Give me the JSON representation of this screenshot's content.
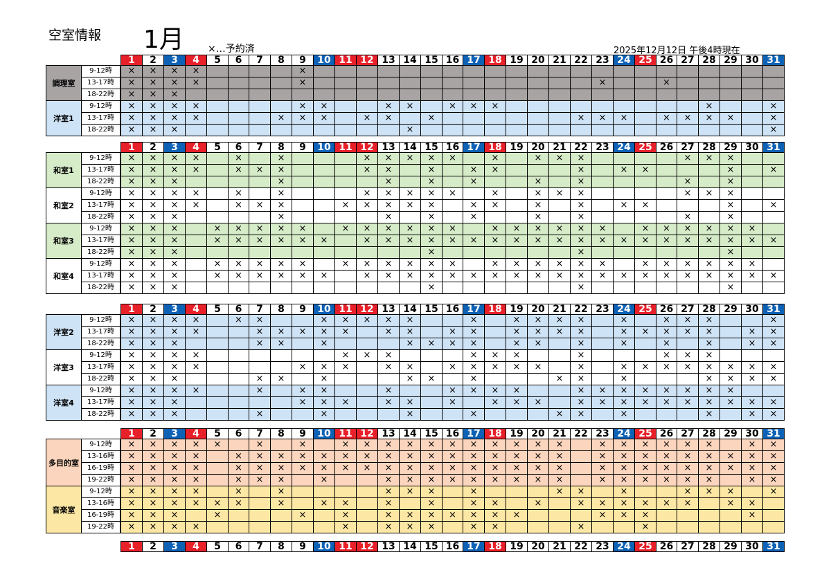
{
  "header": {
    "title": "空室情報",
    "month": "1月",
    "legend": "×…予約済",
    "as_of": "2025年12月12日 午後4時現在"
  },
  "day_labels": [
    "1",
    "2",
    "3",
    "4",
    "5",
    "6",
    "7",
    "8",
    "9",
    "10",
    "11",
    "12",
    "13",
    "14",
    "15",
    "16",
    "17",
    "18",
    "19",
    "20",
    "21",
    "22",
    "23",
    "24",
    "25",
    "26",
    "27",
    "28",
    "29",
    "30",
    "31"
  ],
  "red_days": [
    1,
    4,
    11,
    12,
    18,
    25
  ],
  "blue_days": [
    3,
    10,
    17,
    24,
    31
  ],
  "mark": "×",
  "colors": {
    "gray": "#a8a4a4",
    "blue": "#cfe3f6",
    "green": "#d6ebc8",
    "orange": "#fbd5bd",
    "yellow": "#fde7a4",
    "red": "#e8202a",
    "darkblue": "#0d62b6"
  },
  "sections": [
    {
      "rooms": [
        {
          "name": "調理室",
          "color": "gray",
          "rows": [
            {
              "slot": "9-12時",
              "booked": [
                1,
                2,
                3,
                4,
                9
              ]
            },
            {
              "slot": "13-17時",
              "booked": [
                1,
                2,
                3,
                4,
                9,
                23,
                26
              ]
            },
            {
              "slot": "18-22時",
              "booked": [
                1,
                2,
                3
              ]
            }
          ]
        },
        {
          "name": "洋室1",
          "color": "blue",
          "rows": [
            {
              "slot": "9-12時",
              "booked": [
                1,
                2,
                3,
                4,
                9,
                10,
                13,
                14,
                16,
                17,
                18,
                28,
                31
              ]
            },
            {
              "slot": "13-17時",
              "booked": [
                1,
                2,
                3,
                4,
                8,
                9,
                10,
                12,
                13,
                15,
                22,
                23,
                24,
                26,
                27,
                28,
                29,
                31
              ]
            },
            {
              "slot": "18-22時",
              "booked": [
                1,
                2,
                3,
                14,
                31
              ]
            }
          ]
        }
      ]
    },
    {
      "rooms": [
        {
          "name": "和室1",
          "color": "green",
          "rows": [
            {
              "slot": "9-12時",
              "booked": [
                1,
                2,
                3,
                4,
                6,
                8,
                12,
                13,
                14,
                15,
                16,
                18,
                20,
                21,
                22,
                27,
                28,
                29
              ]
            },
            {
              "slot": "13-17時",
              "booked": [
                1,
                2,
                3,
                4,
                6,
                7,
                8,
                12,
                13,
                15,
                17,
                18,
                22,
                24,
                25,
                29,
                31
              ]
            },
            {
              "slot": "18-22時",
              "booked": [
                1,
                2,
                3,
                8,
                13,
                15,
                17,
                20,
                22,
                27,
                29
              ]
            }
          ]
        },
        {
          "name": "和室2",
          "color": "white",
          "rows": [
            {
              "slot": "9-12時",
              "booked": [
                1,
                2,
                3,
                4,
                6,
                8,
                12,
                13,
                14,
                15,
                16,
                18,
                20,
                21,
                22,
                27,
                28,
                29
              ]
            },
            {
              "slot": "13-17時",
              "booked": [
                1,
                2,
                3,
                4,
                6,
                7,
                8,
                11,
                12,
                13,
                14,
                15,
                17,
                18,
                20,
                22,
                24,
                25,
                29,
                31
              ]
            },
            {
              "slot": "18-22時",
              "booked": [
                1,
                2,
                3,
                8,
                13,
                15,
                17,
                20,
                22,
                27,
                29
              ]
            }
          ]
        },
        {
          "name": "和室3",
          "color": "green",
          "rows": [
            {
              "slot": "9-12時",
              "booked": [
                1,
                2,
                3,
                5,
                6,
                7,
                8,
                9,
                11,
                12,
                13,
                14,
                15,
                16,
                18,
                19,
                20,
                21,
                22,
                23,
                25,
                26,
                27,
                28,
                29,
                30
              ]
            },
            {
              "slot": "13-17時",
              "booked": [
                1,
                2,
                3,
                5,
                6,
                7,
                8,
                9,
                10,
                12,
                13,
                14,
                15,
                16,
                17,
                18,
                19,
                20,
                21,
                22,
                23,
                24,
                25,
                26,
                27,
                28,
                29,
                30,
                31
              ]
            },
            {
              "slot": "18-22時",
              "booked": [
                1,
                2,
                3,
                15,
                22,
                29
              ]
            }
          ]
        },
        {
          "name": "和室4",
          "color": "white",
          "rows": [
            {
              "slot": "9-12時",
              "booked": [
                1,
                2,
                3,
                5,
                6,
                7,
                8,
                9,
                11,
                12,
                13,
                14,
                15,
                16,
                18,
                19,
                20,
                21,
                22,
                23,
                25,
                26,
                27,
                28,
                29,
                30
              ]
            },
            {
              "slot": "13-17時",
              "booked": [
                1,
                2,
                3,
                5,
                6,
                7,
                8,
                9,
                10,
                12,
                13,
                14,
                15,
                16,
                17,
                18,
                19,
                20,
                21,
                22,
                23,
                24,
                25,
                26,
                27,
                28,
                29,
                30,
                31
              ]
            },
            {
              "slot": "18-22時",
              "booked": [
                1,
                2,
                3,
                15,
                22,
                29
              ]
            }
          ]
        }
      ]
    },
    {
      "rooms": [
        {
          "name": "洋室2",
          "color": "blue",
          "rows": [
            {
              "slot": "9-12時",
              "booked": [
                1,
                2,
                3,
                4,
                6,
                7,
                10,
                11,
                12,
                13,
                14,
                17,
                19,
                20,
                21,
                22,
                24,
                26,
                27,
                28,
                31
              ]
            },
            {
              "slot": "13-17時",
              "booked": [
                1,
                2,
                3,
                4,
                7,
                8,
                9,
                10,
                11,
                13,
                14,
                16,
                17,
                19,
                20,
                21,
                22,
                24,
                25,
                26,
                27,
                28,
                30,
                31
              ]
            },
            {
              "slot": "18-22時",
              "booked": [
                1,
                2,
                3,
                7,
                8,
                10,
                14,
                15,
                16,
                17,
                19,
                20,
                22,
                24,
                26,
                28,
                30,
                31
              ]
            }
          ]
        },
        {
          "name": "洋室3",
          "color": "white",
          "rows": [
            {
              "slot": "9-12時",
              "booked": [
                1,
                2,
                3,
                4,
                11,
                12,
                13,
                17,
                18,
                19,
                22,
                26,
                27,
                28
              ]
            },
            {
              "slot": "13-17時",
              "booked": [
                1,
                2,
                3,
                4,
                9,
                10,
                11,
                13,
                14,
                16,
                17,
                18,
                19,
                20,
                22,
                24,
                25,
                26,
                27,
                28,
                29,
                30,
                31
              ]
            },
            {
              "slot": "18-22時",
              "booked": [
                1,
                2,
                3,
                7,
                8,
                10,
                14,
                15,
                17,
                21,
                22,
                24,
                28,
                29,
                30,
                31
              ]
            }
          ]
        },
        {
          "name": "洋室4",
          "color": "blue",
          "rows": [
            {
              "slot": "9-12時",
              "booked": [
                1,
                2,
                3,
                4,
                7,
                9,
                10,
                13,
                16,
                17,
                18,
                19,
                22,
                23,
                24,
                25,
                26,
                27,
                28,
                29
              ]
            },
            {
              "slot": "13-17時",
              "booked": [
                1,
                2,
                3,
                9,
                10,
                11,
                13,
                14,
                16,
                18,
                19,
                20,
                22,
                23,
                24,
                25,
                26,
                27,
                28,
                29,
                30,
                31
              ]
            },
            {
              "slot": "18-22時",
              "booked": [
                1,
                2,
                3,
                7,
                10,
                14,
                17,
                21,
                22,
                24,
                28,
                30,
                31
              ]
            }
          ]
        }
      ]
    },
    {
      "rooms": [
        {
          "name": "多目的室",
          "color": "orange",
          "rows": [
            {
              "slot": "9-12時",
              "booked": [
                1,
                2,
                3,
                4,
                5,
                7,
                9,
                11,
                12,
                13,
                14,
                15,
                16,
                17,
                18,
                19,
                20,
                21,
                23,
                24,
                25,
                26,
                27,
                28,
                30,
                31
              ]
            },
            {
              "slot": "13-16時",
              "booked": [
                1,
                2,
                3,
                4,
                6,
                7,
                8,
                9,
                10,
                11,
                12,
                13,
                14,
                15,
                16,
                17,
                18,
                19,
                20,
                21,
                23,
                24,
                25,
                26,
                27,
                28,
                29,
                30,
                31
              ]
            },
            {
              "slot": "16-19時",
              "booked": [
                1,
                2,
                3,
                4,
                6,
                7,
                8,
                9,
                10,
                11,
                12,
                13,
                14,
                15,
                16,
                17,
                18,
                19,
                20,
                21,
                23,
                24,
                25,
                26,
                27,
                28,
                29,
                30,
                31
              ]
            },
            {
              "slot": "19-22時",
              "booked": [
                1,
                2,
                3,
                4,
                6,
                7,
                8,
                10,
                13,
                14,
                15,
                16,
                17,
                18,
                19,
                20,
                21,
                23,
                24,
                25,
                26,
                27,
                28,
                30,
                31
              ]
            }
          ]
        },
        {
          "name": "音楽室",
          "color": "yellow",
          "rows": [
            {
              "slot": "9-12時",
              "booked": [
                1,
                2,
                3,
                4,
                6,
                8,
                13,
                14,
                15,
                17,
                21,
                22,
                24,
                27,
                28,
                29,
                31
              ]
            },
            {
              "slot": "13-16時",
              "booked": [
                1,
                2,
                3,
                4,
                5,
                6,
                8,
                10,
                11,
                13,
                15,
                17,
                18,
                20,
                22,
                23,
                24,
                25,
                26,
                27,
                29,
                30
              ]
            },
            {
              "slot": "16-19時",
              "booked": [
                1,
                2,
                3,
                5,
                9,
                11,
                13,
                14,
                15,
                16,
                17,
                18,
                19,
                23,
                24,
                25,
                30
              ]
            },
            {
              "slot": "19-22時",
              "booked": [
                1,
                2,
                3,
                4,
                11,
                13,
                14,
                15,
                17,
                18,
                22,
                25
              ]
            }
          ]
        }
      ]
    }
  ]
}
